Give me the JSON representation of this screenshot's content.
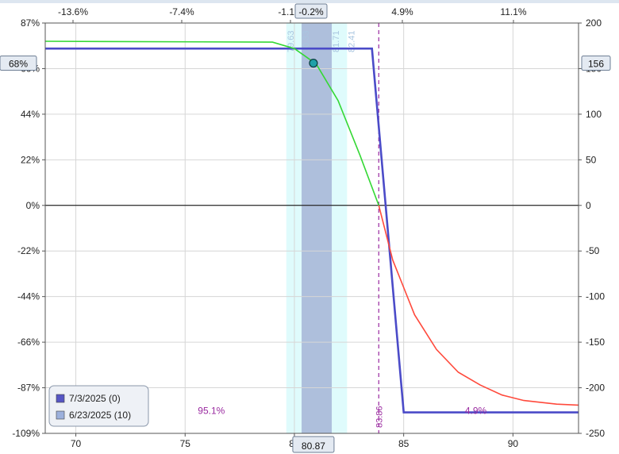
{
  "chart_data": {
    "type": "line",
    "x_range": [
      68.6,
      93
    ],
    "x_ticks": [
      70,
      75,
      80,
      85,
      90
    ],
    "y_left_range": [
      -109,
      87
    ],
    "y_left_ticks": [
      "87%",
      "66%",
      "44%",
      "22%",
      "0%",
      "-22%",
      "-44%",
      "-66%",
      "-87%",
      "-109%"
    ],
    "y_right_range": [
      -250,
      200
    ],
    "y_right_ticks": [
      "200",
      "150",
      "100",
      "50",
      "0",
      "-50",
      "-100",
      "-150",
      "-200",
      "-250"
    ],
    "top_axis_ticks": [
      "-13.6%",
      "-7.4%",
      "-1.1%",
      "4.9%",
      "11.1%"
    ],
    "top_marker_label": "-0.2%",
    "left_marker_label": "68%",
    "right_marker_label": "156",
    "bottom_marker_label": "80.87",
    "bands": {
      "outer": [
        79.63,
        82.41
      ],
      "inner": [
        80.33,
        81.71
      ],
      "labels": [
        "79.63",
        "80.33",
        "81.71",
        "82.41"
      ]
    },
    "breakeven": {
      "x": 83.86,
      "label": "83.86"
    },
    "current_point": {
      "x": 80.87,
      "y": 156
    },
    "probability_labels": [
      {
        "text": "95.1%",
        "x": 76.2,
        "y": -225
      },
      {
        "text": "4.9%",
        "x": 88.3,
        "y": -225
      }
    ],
    "series": [
      {
        "name": "7/3/2025 (0)",
        "color": "#4b4bc8",
        "values": [
          [
            68.6,
            172
          ],
          [
            83.55,
            172
          ],
          [
            85.0,
            -227
          ],
          [
            93,
            -227
          ]
        ]
      },
      {
        "name": "6/23/2025 (10)",
        "color": "#34d834",
        "color_loss": "#ff4a3c",
        "values": [
          [
            68.6,
            180
          ],
          [
            79.0,
            179
          ],
          [
            80.0,
            172
          ],
          [
            81.0,
            155
          ],
          [
            82.0,
            115
          ],
          [
            83.0,
            55
          ],
          [
            83.86,
            0
          ],
          [
            84.5,
            -60
          ],
          [
            85.5,
            -120
          ],
          [
            86.5,
            -158
          ],
          [
            87.5,
            -183
          ],
          [
            88.5,
            -197
          ],
          [
            89.5,
            -208
          ],
          [
            90.5,
            -214
          ],
          [
            92.0,
            -218
          ],
          [
            93,
            -219
          ]
        ]
      }
    ],
    "legend": {
      "position": "bottom-left"
    }
  },
  "colors": {
    "zero_line": "#000000",
    "grid": "#d6d6d6",
    "band_outer": "#dffbfc",
    "band_inner": "#aebfdc",
    "breakeven": "#9a2aa0",
    "prob_text": "#9a2aa0",
    "band_label": "#a9c6e0",
    "marker_box": "#e4eaf2"
  }
}
